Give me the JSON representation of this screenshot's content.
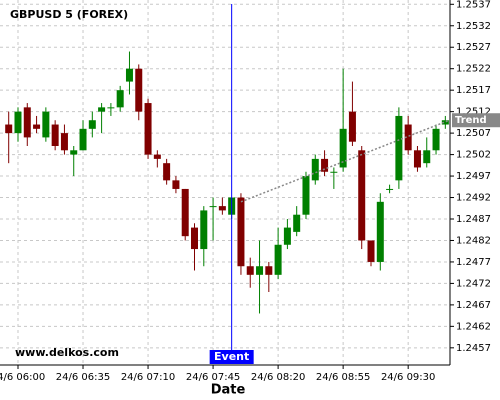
{
  "chart_data": {
    "type": "candlestick",
    "title": "GBPUSD 5 (FOREX)",
    "watermark": "www.delkos.com",
    "x_label": "Date",
    "categories": [
      null,
      "24/6 06:00",
      null,
      null,
      null,
      null,
      null,
      null,
      "24/6 06:35",
      null,
      null,
      null,
      null,
      null,
      null,
      "24/6 07:10",
      null,
      null,
      null,
      null,
      null,
      null,
      "24/6 07:45",
      null,
      null,
      null,
      null,
      null,
      null,
      "24/6 08:20",
      null,
      null,
      null,
      null,
      null,
      null,
      "24/6 08:55",
      null,
      null,
      null,
      null,
      null,
      null,
      "24/6 09:30",
      null,
      null,
      null,
      null
    ],
    "open": [
      1.2509,
      1.2507,
      1.2513,
      1.2509,
      1.2506,
      1.2509,
      1.2507,
      1.2502,
      1.2503,
      1.2508,
      1.2512,
      1.2513,
      1.2513,
      1.2519,
      1.2522,
      1.2514,
      1.2502,
      1.25,
      1.2496,
      1.2494,
      1.2485,
      1.248,
      1.249,
      1.249,
      1.2488,
      1.2492,
      1.2476,
      1.2474,
      1.2476,
      1.2474,
      1.2481,
      1.2484,
      1.2488,
      1.2496,
      1.2501,
      1.2498,
      1.2499,
      1.2512,
      1.2503,
      1.2482,
      1.2477,
      1.2494,
      1.2496,
      1.2509,
      1.2503,
      1.25,
      1.2503,
      1.2509
    ],
    "high": [
      1.2512,
      1.2513,
      1.2514,
      1.2511,
      1.2513,
      1.251,
      1.2509,
      1.2504,
      1.251,
      1.2512,
      1.2514,
      1.2514,
      1.2518,
      1.2526,
      1.2523,
      1.2515,
      1.2503,
      1.2501,
      1.2497,
      1.2494,
      1.2486,
      1.249,
      1.2492,
      1.2492,
      1.2492,
      1.2493,
      1.2478,
      1.2482,
      1.2477,
      1.2485,
      1.2487,
      1.249,
      1.2498,
      1.2502,
      1.2503,
      1.2499,
      1.2522,
      1.2519,
      1.2504,
      1.2482,
      1.2493,
      1.2495,
      1.2513,
      1.2511,
      1.2504,
      1.2506,
      1.2509,
      1.2511
    ],
    "low": [
      1.25,
      1.2505,
      1.2504,
      1.2507,
      1.2505,
      1.2503,
      1.2502,
      1.2497,
      1.2503,
      1.2506,
      1.2507,
      1.2511,
      1.2512,
      1.2516,
      1.251,
      1.2501,
      1.2499,
      1.2495,
      1.2493,
      1.2482,
      1.2475,
      1.2476,
      1.2482,
      1.2488,
      1.2487,
      1.2474,
      1.2471,
      1.2465,
      1.247,
      1.2473,
      1.248,
      1.2483,
      1.2487,
      1.2495,
      1.2497,
      1.2494,
      1.2498,
      1.2504,
      1.248,
      1.2476,
      1.2475,
      1.2493,
      1.2494,
      1.2502,
      1.2498,
      1.2499,
      1.2502,
      1.2508
    ],
    "close": [
      1.2507,
      1.2512,
      1.2506,
      1.2508,
      1.2512,
      1.2504,
      1.2503,
      1.2503,
      1.2508,
      1.251,
      1.2513,
      1.2513,
      1.2517,
      1.2522,
      1.2512,
      1.2502,
      1.2501,
      1.2496,
      1.2494,
      1.2483,
      1.248,
      1.2489,
      1.249,
      1.2489,
      1.2492,
      1.2476,
      1.2474,
      1.2476,
      1.2474,
      1.2481,
      1.2485,
      1.2488,
      1.2497,
      1.2501,
      1.2498,
      1.2498,
      1.2508,
      1.2505,
      1.2482,
      1.2477,
      1.2491,
      1.2494,
      1.2511,
      1.2503,
      1.2499,
      1.2503,
      1.2508,
      1.251
    ],
    "up_color": "#008000",
    "down_color": "#800000",
    "ylim": [
      1.2453,
      1.2538
    ],
    "yticks": [
      1.2457,
      1.2462,
      1.2467,
      1.2472,
      1.2477,
      1.2482,
      1.2487,
      1.2492,
      1.2497,
      1.2502,
      1.2507,
      1.2512,
      1.2517,
      1.2522,
      1.2527,
      1.2532,
      1.2537
    ],
    "grid": true,
    "event": {
      "label": "Event",
      "index": 24,
      "color": "#0000ff"
    },
    "trend": {
      "label": "Trend",
      "from": 25,
      "to": 47,
      "values": [
        1.2491,
        1.251
      ],
      "color": "#888888"
    }
  }
}
